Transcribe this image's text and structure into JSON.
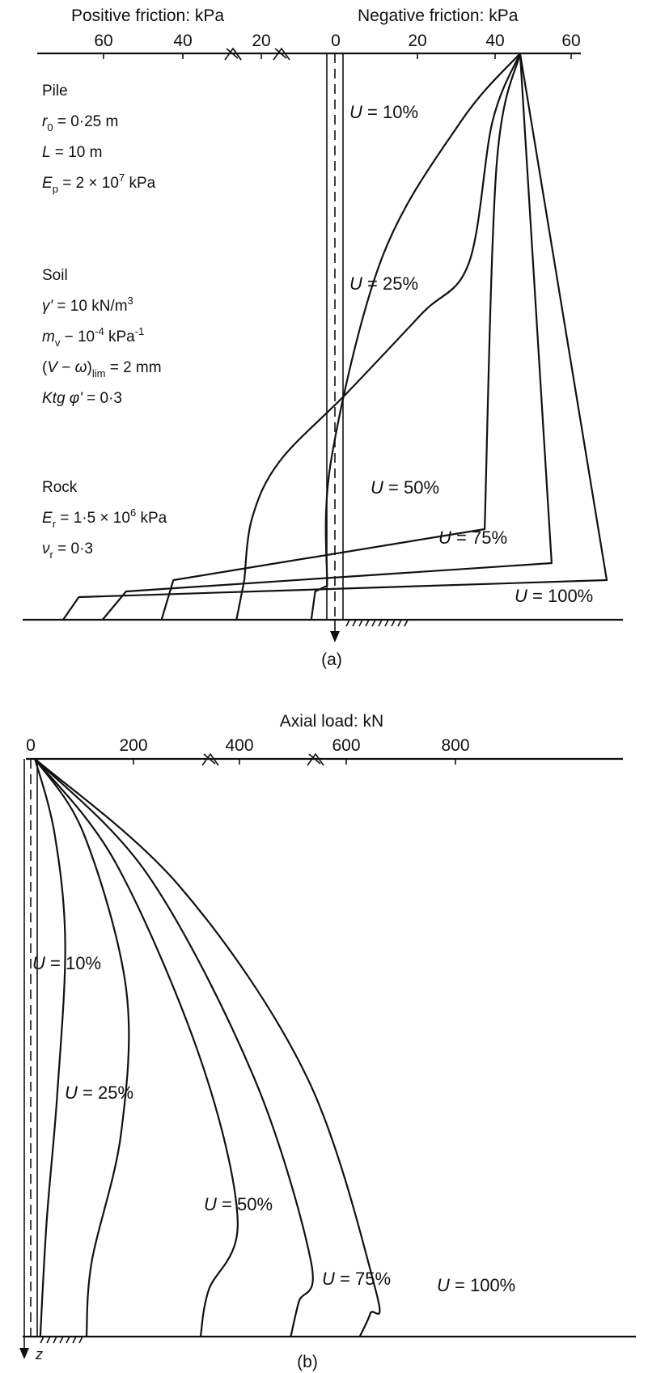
{
  "chart_data": [
    {
      "type": "line",
      "panel_label": "(a)",
      "title_left": "Positive friction: kPa",
      "title_right": "Negative friction: kPa",
      "x_ticks_left": [
        "60",
        "40",
        "20"
      ],
      "x_zero": "0",
      "x_ticks_right": [
        "20",
        "40",
        "60"
      ],
      "xlim": [
        -70,
        65
      ],
      "notes": {
        "pile": {
          "heading": "Pile",
          "r0": "0·25 m",
          "L": "10 m",
          "Ep": "2 × 10",
          "Ep_exp": "7",
          "Ep_unit": "kPa"
        },
        "soil": {
          "heading": "Soil",
          "gamma": "10 kN/m",
          "gamma_exp": "3",
          "mv": "10",
          "mv_exp": "-4",
          "mv_unit": "kPa",
          "mv_unit_exp": "-1",
          "vw": "2 mm",
          "ktg": "0·3"
        },
        "rock": {
          "heading": "Rock",
          "Er": "1·5 × 10",
          "Er_exp": "6",
          "Er_unit": "kPa",
          "nu": "0·3"
        }
      },
      "series": [
        {
          "name": "U = 10%",
          "label": "10%",
          "points": [
            [
              47,
              0.0
            ],
            [
              32,
              0.12
            ],
            [
              12,
              0.36
            ],
            [
              -1,
              0.72
            ],
            [
              -2,
              0.94
            ],
            [
              -5,
              0.95
            ],
            [
              -6,
              1.0
            ]
          ]
        },
        {
          "name": "U = 25%",
          "label": "25%",
          "points": [
            [
              47,
              0.0
            ],
            [
              40,
              0.12
            ],
            [
              34,
              0.37
            ],
            [
              22,
              0.46
            ],
            [
              3,
              0.6
            ],
            [
              -14,
              0.72
            ],
            [
              -21,
              0.82
            ],
            [
              -23,
              0.93
            ],
            [
              -25,
              1.0
            ]
          ]
        },
        {
          "name": "U = 50%",
          "label": "50%",
          "points": [
            [
              47,
              0.0
            ],
            [
              41,
              0.2
            ],
            [
              38,
              0.84
            ],
            [
              -41,
              0.93
            ],
            [
              -44,
              1.0
            ]
          ]
        },
        {
          "name": "U = 75%",
          "label": "75%",
          "points": [
            [
              47,
              0.0
            ],
            [
              55,
              0.9
            ],
            [
              -53,
              0.95
            ],
            [
              -59,
              1.0
            ]
          ]
        },
        {
          "name": "U = 100%",
          "label": "100%",
          "points": [
            [
              47,
              0.0
            ],
            [
              69,
              0.93
            ],
            [
              -65,
              0.96
            ],
            [
              -69,
              1.0
            ]
          ]
        }
      ]
    },
    {
      "type": "line",
      "panel_label": "(b)",
      "title": "Axial load: kN",
      "x_ticks": [
        "0",
        "200",
        "400",
        "600",
        "800"
      ],
      "xlim": [
        0,
        1150
      ],
      "axis_z_label": "z",
      "series": [
        {
          "name": "U = 10%",
          "label": "10%",
          "points": [
            [
              8,
              0.0
            ],
            [
              45,
              0.13
            ],
            [
              65,
              0.32
            ],
            [
              50,
              0.58
            ],
            [
              30,
              0.8
            ],
            [
              18,
              1.0
            ]
          ]
        },
        {
          "name": "U = 25%",
          "label": "25%",
          "points": [
            [
              8,
              0.0
            ],
            [
              100,
              0.13
            ],
            [
              180,
              0.4
            ],
            [
              170,
              0.65
            ],
            [
              115,
              0.87
            ],
            [
              105,
              1.0
            ]
          ]
        },
        {
          "name": "U = 50%",
          "label": "50%",
          "points": [
            [
              8,
              0.0
            ],
            [
              160,
              0.18
            ],
            [
              320,
              0.52
            ],
            [
              390,
              0.8
            ],
            [
              335,
              0.92
            ],
            [
              320,
              1.0
            ]
          ]
        },
        {
          "name": "U = 75%",
          "label": "75%",
          "points": [
            [
              8,
              0.0
            ],
            [
              220,
              0.2
            ],
            [
              420,
              0.55
            ],
            [
              528,
              0.87
            ],
            [
              505,
              0.94
            ],
            [
              490,
              1.0
            ]
          ]
        },
        {
          "name": "U = 100%",
          "label": "100%",
          "points": [
            [
              8,
              0.0
            ],
            [
              280,
              0.22
            ],
            [
              520,
              0.55
            ],
            [
              650,
              0.92
            ],
            [
              640,
              0.96
            ],
            [
              620,
              1.0
            ]
          ]
        }
      ]
    }
  ]
}
